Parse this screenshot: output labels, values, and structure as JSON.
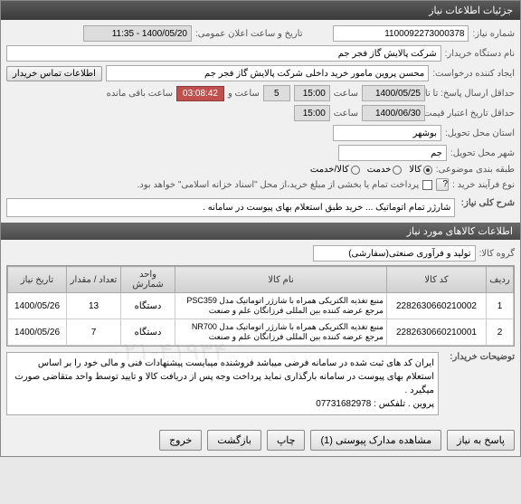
{
  "titlebar": "جزئیات اطلاعات نیاز",
  "fields": {
    "needNo_label": "شماره نیاز:",
    "needNo": "1100092273000378",
    "dateTime_label": "تاریخ و ساعت اعلان عمومی:",
    "dateTime": "1400/05/20 - 11:35",
    "deviceName_label": "نام دستگاه خریدار:",
    "deviceName": "شرکت پالایش گاز فجر جم",
    "requester_label": "ایجاد کننده درخواست:",
    "requester": "محسن پروین مامور خرید داخلی شرکت پالایش گاز فجر جم",
    "contactBtn": "اطلاعات تماس خریدار",
    "deadline_label": "حداقل ارسال پاسخ: تا تاریخ:",
    "deadline_date": "1400/05/25",
    "hour_label": "ساعت",
    "deadline_hour": "15:00",
    "deadline_remain": "5",
    "hour_unit": "ساعت و",
    "countdown": "03:08:42",
    "remaining_label": "ساعت باقی مانده",
    "validity_label": "حداقل تاریخ اعتبار قیمت تا تاریخ:",
    "validity_date": "1400/06/30",
    "validity_hour": "15:00",
    "province_label": "استان محل تحویل:",
    "province": "بوشهر",
    "city_label": "شهر محل تحویل:",
    "city": "جم",
    "category_label": "طبقه بندی موضوعی:",
    "cat_goods": "کالا",
    "cat_service": "خدمت",
    "cat_goods_service": "کالا/خدمت",
    "process_label": "نوع فرآیند خرید :",
    "process_note": "پرداخت تمام یا بخشی از مبلغ خرید،از محل \"اسناد خزانه اسلامی\" خواهد بود.",
    "desc_label": "شرح کلی نیاز:",
    "desc_text": "شارژر تمام اتوماتیک ... خرید طبق استعلام بهای پیوست در سامانه .",
    "goods_section": "اطلاعات کالاهای مورد نیاز",
    "group_label": "گروه کالا:",
    "group_value": "تولید و فرآوری صنعتی(سفارشی)",
    "notes_label": "توضیحات خریدار:",
    "notes_text": "ایران کد های ثبت شده در سامانه فرضی میباشد فروشنده میبایست پیشنهادات فنی و مالی خود را بر اساس استعلام بهای پیوست در سامانه بارگذاری نماید پرداخت وجه پس از دریافت کالا و تایید توسط واحد متقاضی صورت میگیرد .\nپروین . تلفکس : 07731682978"
  },
  "table": {
    "headers": [
      "ردیف",
      "کد کالا",
      "نام کالا",
      "واحد شمارش",
      "تعداد / مقدار",
      "تاریخ نیاز"
    ],
    "rows": [
      {
        "idx": "1",
        "code": "2282630660210002",
        "name": "منبع تغذیه الکتریکی همراه با شارژر اتوماتیک مدل PSC359 مرجع عرضه کننده بین المللی فرزانگان علم و صنعت",
        "unit": "دستگاه",
        "qty": "13",
        "date": "1400/05/26"
      },
      {
        "idx": "2",
        "code": "2282630660210001",
        "name": "منبع تغذیه الکتریکی همراه با شارژر اتوماتیک مدل NR700 مرجع عرضه کننده بین المللی فرزانگان علم و صنعت",
        "unit": "دستگاه",
        "qty": "7",
        "date": "1400/05/26"
      }
    ]
  },
  "buttons": {
    "answer": "پاسخ به نیاز",
    "attachments": "مشاهده مدارک پیوستی (1)",
    "print": "چاپ",
    "back": "بازگشت",
    "exit": "خروج"
  },
  "watermark": "۰۲۱-۴۱۹۳۴"
}
